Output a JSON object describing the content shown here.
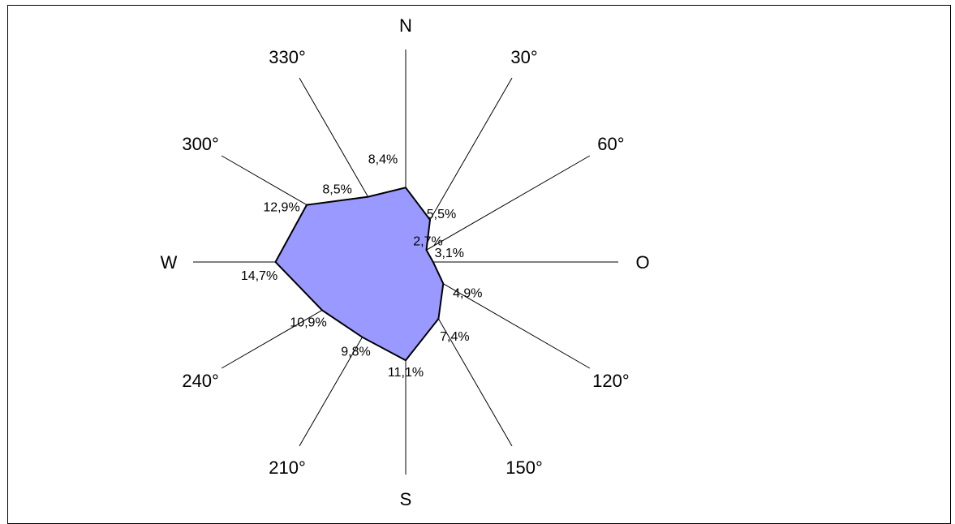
{
  "chart_data": {
    "type": "radar",
    "title": "",
    "fill_color": "#9999FF",
    "outline_color": "#000000",
    "directions": [
      {
        "label": "N",
        "angle": 0,
        "value": 8.4,
        "value_label": "8,4%"
      },
      {
        "label": "30°",
        "angle": 30,
        "value": 5.5,
        "value_label": "5,5%"
      },
      {
        "label": "60°",
        "angle": 60,
        "value": 2.7,
        "value_label": "2,7%"
      },
      {
        "label": "O",
        "angle": 90,
        "value": 3.1,
        "value_label": "3,1%"
      },
      {
        "label": "120°",
        "angle": 120,
        "value": 4.9,
        "value_label": "4,9%"
      },
      {
        "label": "150°",
        "angle": 150,
        "value": 7.4,
        "value_label": "7,4%"
      },
      {
        "label": "S",
        "angle": 180,
        "value": 11.1,
        "value_label": "11,1%"
      },
      {
        "label": "210°",
        "angle": 210,
        "value": 9.8,
        "value_label": "9,8%"
      },
      {
        "label": "240°",
        "angle": 240,
        "value": 10.9,
        "value_label": "10,9%"
      },
      {
        "label": "W",
        "angle": 270,
        "value": 14.7,
        "value_label": "14,7%"
      },
      {
        "label": "300°",
        "angle": 300,
        "value": 12.9,
        "value_label": "12,9%"
      },
      {
        "label": "330°",
        "angle": 330,
        "value": 8.5,
        "value_label": "8,5%"
      }
    ],
    "r_max": 24
  }
}
